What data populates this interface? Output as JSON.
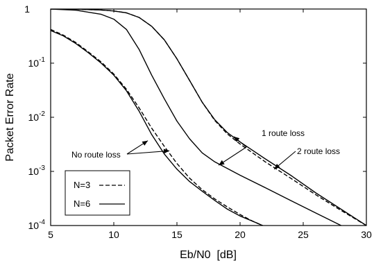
{
  "chart_data": {
    "type": "line",
    "xlabel": "Eb/N0  [dB]",
    "ylabel": "Packet Error Rate",
    "xlim": [
      5,
      30
    ],
    "ylim": [
      0.0001,
      1
    ],
    "y_scale": "log",
    "x_ticks": [
      "5",
      "10",
      "15",
      "20",
      "25",
      "30"
    ],
    "y_ticks": [
      {
        "base": "1",
        "exp": "",
        "value": 1
      },
      {
        "base": "10",
        "exp": "-1",
        "value": 0.1
      },
      {
        "base": "10",
        "exp": "-2",
        "value": 0.01
      },
      {
        "base": "10",
        "exp": "-3",
        "value": 0.001
      },
      {
        "base": "10",
        "exp": "-4",
        "value": 0.0001
      }
    ],
    "grid": false,
    "legend": {
      "placement": "bottom-left",
      "entries": [
        {
          "label": "N=3",
          "style": "dashed"
        },
        {
          "label": "N=6",
          "style": "solid"
        }
      ]
    },
    "annotations": [
      {
        "text": "No route loss",
        "targets": [
          [
            12.7,
            0.0037
          ],
          [
            14.4,
            0.0024
          ]
        ]
      },
      {
        "text": "1 route loss",
        "targets": [
          [
            19.5,
            0.0044
          ],
          [
            18.3,
            0.0013
          ]
        ]
      },
      {
        "text": "2 route loss",
        "targets": [
          [
            22.7,
            0.0011
          ]
        ]
      }
    ],
    "series": [
      {
        "style": "dashed",
        "x": [
          5,
          6,
          7,
          8,
          9,
          10,
          11,
          12,
          13,
          14,
          15,
          16,
          17,
          18,
          19,
          20,
          21,
          22
        ],
        "y": [
          0.42,
          0.33,
          0.24,
          0.16,
          0.105,
          0.063,
          0.033,
          0.015,
          0.0063,
          0.0029,
          0.0014,
          0.00075,
          0.00046,
          0.00031,
          0.00022,
          0.00016,
          0.00012,
          9.5e-05
        ]
      },
      {
        "style": "solid",
        "x": [
          5,
          6,
          7,
          8,
          9,
          10,
          11,
          12,
          13,
          14,
          15,
          16,
          17,
          18,
          19,
          20,
          21,
          22
        ],
        "y": [
          0.4,
          0.32,
          0.23,
          0.155,
          0.1,
          0.06,
          0.031,
          0.013,
          0.0048,
          0.0021,
          0.0011,
          0.00065,
          0.00043,
          0.00029,
          0.0002,
          0.00015,
          0.00012,
          9.5e-05
        ]
      },
      {
        "style": "solid",
        "x": [
          5,
          7,
          9,
          10,
          11,
          12,
          13,
          14,
          15,
          16,
          17,
          18,
          20,
          22,
          24,
          26,
          28
        ],
        "y": [
          1,
          0.95,
          0.8,
          0.65,
          0.42,
          0.18,
          0.06,
          0.022,
          0.0085,
          0.004,
          0.0022,
          0.0015,
          0.00085,
          0.0005,
          0.00029,
          0.00017,
          0.0001
        ]
      },
      {
        "style": "solid",
        "x": [
          5,
          7,
          9,
          10,
          11,
          12,
          13,
          14,
          15,
          16,
          17,
          18,
          19,
          20,
          22,
          24,
          26,
          28,
          30
        ],
        "y": [
          1,
          0.99,
          0.96,
          0.92,
          0.85,
          0.7,
          0.48,
          0.27,
          0.12,
          0.048,
          0.019,
          0.009,
          0.0052,
          0.0035,
          0.0017,
          0.00085,
          0.0004,
          0.0002,
          0.0001
        ]
      },
      {
        "style": "dashed",
        "x": [
          5,
          7,
          9,
          10,
          11,
          12,
          13,
          14,
          15,
          16,
          17,
          18,
          19,
          20,
          22,
          24,
          26,
          28,
          30
        ],
        "y": [
          1,
          0.99,
          0.96,
          0.92,
          0.85,
          0.7,
          0.48,
          0.27,
          0.12,
          0.048,
          0.019,
          0.0087,
          0.0049,
          0.0032,
          0.0015,
          0.00075,
          0.00037,
          0.00019,
          0.0001
        ]
      }
    ]
  }
}
